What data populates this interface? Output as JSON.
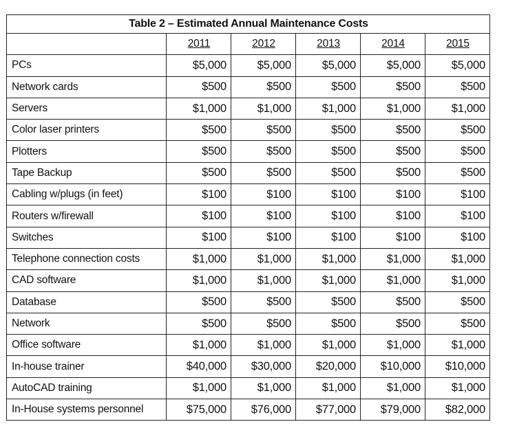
{
  "table": {
    "title": "Table 2 – Estimated Annual Maintenance Costs",
    "years": [
      "2011",
      "2012",
      "2013",
      "2014",
      "2015"
    ],
    "rows": [
      {
        "label": "PCs",
        "values": [
          "$5,000",
          "$5,000",
          "$5,000",
          "$5,000",
          "$5,000"
        ]
      },
      {
        "label": "Network cards",
        "values": [
          "$500",
          "$500",
          "$500",
          "$500",
          "$500"
        ]
      },
      {
        "label": "Servers",
        "values": [
          "$1,000",
          "$1,000",
          "$1,000",
          "$1,000",
          "$1,000"
        ]
      },
      {
        "label": "Color laser printers",
        "values": [
          "$500",
          "$500",
          "$500",
          "$500",
          "$500"
        ]
      },
      {
        "label": "Plotters",
        "values": [
          "$500",
          "$500",
          "$500",
          "$500",
          "$500"
        ]
      },
      {
        "label": "Tape Backup",
        "values": [
          "$500",
          "$500",
          "$500",
          "$500",
          "$500"
        ]
      },
      {
        "label": "Cabling w/plugs (in feet)",
        "values": [
          "$100",
          "$100",
          "$100",
          "$100",
          "$100"
        ]
      },
      {
        "label": "Routers w/firewall",
        "values": [
          "$100",
          "$100",
          "$100",
          "$100",
          "$100"
        ]
      },
      {
        "label": "Switches",
        "values": [
          "$100",
          "$100",
          "$100",
          "$100",
          "$100"
        ]
      },
      {
        "label": "Telephone connection costs",
        "values": [
          "$1,000",
          "$1,000",
          "$1,000",
          "$1,000",
          "$1,000"
        ]
      },
      {
        "label": "CAD software",
        "values": [
          "$1,000",
          "$1,000",
          "$1,000",
          "$1,000",
          "$1,000"
        ]
      },
      {
        "label": "Database",
        "values": [
          "$500",
          "$500",
          "$500",
          "$500",
          "$500"
        ]
      },
      {
        "label": "Network",
        "values": [
          "$500",
          "$500",
          "$500",
          "$500",
          "$500"
        ]
      },
      {
        "label": "Office software",
        "values": [
          "$1,000",
          "$1,000",
          "$1,000",
          "$1,000",
          "$1,000"
        ]
      },
      {
        "label": "In-house trainer",
        "values": [
          "$40,000",
          "$30,000",
          "$20,000",
          "$10,000",
          "$10,000"
        ]
      },
      {
        "label": "AutoCAD training",
        "values": [
          "$1,000",
          "$1,000",
          "$1,000",
          "$1,000",
          "$1,000"
        ]
      },
      {
        "label": "In-House systems personnel",
        "values": [
          "$75,000",
          "$76,000",
          "$77,000",
          "$79,000",
          "$82,000"
        ]
      }
    ]
  }
}
